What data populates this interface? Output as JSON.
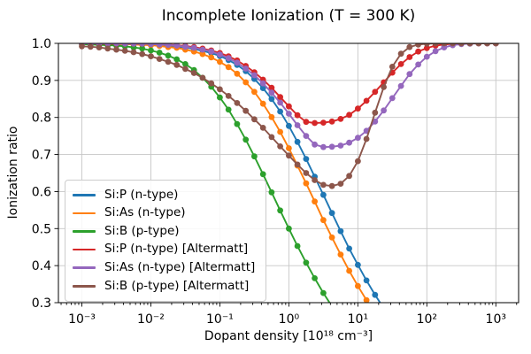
{
  "figure": {
    "title": "Incomplete Ionization (T = 300 K)",
    "background": "#ffffff"
  },
  "axes": {
    "xlabel": "Dopant density [10¹⁸ cm⁻³]",
    "ylabel": "Ionization ratio",
    "x_scale": "log",
    "x_log_range": [
      -3.34,
      3.33
    ],
    "ylim": [
      0.3,
      1.0
    ],
    "x_ticks": {
      "log_values": [
        -3,
        -2,
        -1,
        0,
        1,
        2,
        3
      ],
      "labels": [
        "10⁻³",
        "10⁻²",
        "10⁻¹",
        "10⁰",
        "10¹",
        "10²",
        "10³"
      ]
    },
    "y_ticks": {
      "values": [
        0.3,
        0.4,
        0.5,
        0.6,
        0.7,
        0.8,
        0.9,
        1.0
      ],
      "labels": [
        "0.3",
        "0.4",
        "0.5",
        "0.6",
        "0.7",
        "0.8",
        "0.9",
        "1.0"
      ]
    },
    "grid": true,
    "grid_color": "#c6c6c6",
    "spine_color": "#000000"
  },
  "legend": {
    "position": "lower left",
    "border_color": "#cccccc",
    "background": "rgba(255,255,255,0.85)"
  },
  "chart_data": {
    "type": "line",
    "title": "Incomplete Ionization (T = 300 K)",
    "xlabel": "Dopant density [10^18 cm^-3]",
    "ylabel": "Ionization ratio",
    "x_scale": "log",
    "marker": "o",
    "x_unit": "1e18 cm^-3",
    "log10_x": [
      -3,
      -2.875,
      -2.75,
      -2.625,
      -2.5,
      -2.375,
      -2.25,
      -2.125,
      -2,
      -1.875,
      -1.75,
      -1.625,
      -1.5,
      -1.375,
      -1.25,
      -1.125,
      -1,
      -0.875,
      -0.75,
      -0.625,
      -0.5,
      -0.375,
      -0.25,
      -0.125,
      0,
      0.125,
      0.25,
      0.375,
      0.5,
      0.625,
      0.75,
      0.875,
      1,
      1.125,
      1.25,
      1.375,
      1.5,
      1.625,
      1.75,
      1.875,
      2,
      2.125,
      2.25,
      2.375,
      2.5,
      2.625,
      2.75,
      2.875,
      3
    ],
    "series": [
      {
        "id": "si-p-n-type",
        "name": "Si:P (n-type)",
        "color": "#1f77b4",
        "y": [
          1.0,
          0.999,
          0.999,
          0.999,
          0.999,
          0.998,
          0.998,
          0.997,
          0.996,
          0.995,
          0.994,
          0.991,
          0.989,
          0.985,
          0.98,
          0.974,
          0.966,
          0.955,
          0.942,
          0.925,
          0.904,
          0.879,
          0.85,
          0.816,
          0.777,
          0.734,
          0.688,
          0.64,
          0.591,
          0.542,
          0.493,
          0.446,
          0.402,
          0.36,
          0.321,
          0.285,
          0.253,
          0.223,
          0.197
        ]
      },
      {
        "id": "si-as-n-type",
        "name": "Si:As (n-type)",
        "color": "#ff7f0e",
        "y": [
          0.999,
          0.999,
          0.999,
          0.999,
          0.998,
          0.998,
          0.997,
          0.996,
          0.995,
          0.993,
          0.99,
          0.988,
          0.983,
          0.978,
          0.971,
          0.962,
          0.95,
          0.936,
          0.918,
          0.895,
          0.869,
          0.837,
          0.801,
          0.761,
          0.717,
          0.67,
          0.622,
          0.573,
          0.523,
          0.476,
          0.43,
          0.386,
          0.345,
          0.307,
          0.273,
          0.241,
          0.213
        ]
      },
      {
        "id": "si-b-p-type",
        "name": "Si:B (p-type)",
        "color": "#2ca02c",
        "y": [
          0.998,
          0.997,
          0.996,
          0.995,
          0.994,
          0.992,
          0.989,
          0.986,
          0.981,
          0.975,
          0.967,
          0.957,
          0.944,
          0.928,
          0.907,
          0.883,
          0.854,
          0.821,
          0.782,
          0.74,
          0.695,
          0.647,
          0.598,
          0.549,
          0.5,
          0.453,
          0.408,
          0.366,
          0.326,
          0.29,
          0.257,
          0.227
        ]
      },
      {
        "id": "si-p-n-type-altermatt",
        "name": "Si:P (n-type) [Altermatt]",
        "color": "#d62728",
        "y": [
          1.0,
          1.0,
          0.999,
          0.999,
          0.999,
          0.999,
          0.999,
          0.999,
          0.999,
          0.998,
          0.997,
          0.995,
          0.993,
          0.99,
          0.986,
          0.981,
          0.974,
          0.965,
          0.954,
          0.939,
          0.922,
          0.902,
          0.88,
          0.855,
          0.83,
          0.806,
          0.788,
          0.785,
          0.786,
          0.789,
          0.796,
          0.807,
          0.824,
          0.845,
          0.869,
          0.895,
          0.921,
          0.944,
          0.963,
          0.978,
          0.987,
          0.994,
          0.997,
          0.999,
          0.999,
          1.0,
          1.0,
          1.0,
          1.0
        ]
      },
      {
        "id": "si-as-n-type-altermatt",
        "name": "Si:As (n-type) [Altermatt]",
        "color": "#9467bd",
        "y": [
          1.0,
          1.0,
          1.0,
          1.0,
          1.0,
          0.999,
          0.999,
          0.999,
          0.998,
          0.997,
          0.996,
          0.994,
          0.991,
          0.988,
          0.983,
          0.978,
          0.97,
          0.96,
          0.948,
          0.932,
          0.914,
          0.892,
          0.867,
          0.84,
          0.81,
          0.779,
          0.75,
          0.727,
          0.72,
          0.721,
          0.724,
          0.732,
          0.745,
          0.764,
          0.789,
          0.819,
          0.852,
          0.885,
          0.917,
          0.943,
          0.964,
          0.979,
          0.989,
          0.995,
          0.998,
          0.999,
          1.0,
          1.0,
          1.0
        ]
      },
      {
        "id": "si-b-p-type-altermatt",
        "name": "Si:B (p-type) [Altermatt]",
        "color": "#8c564b",
        "y": [
          0.992,
          0.991,
          0.989,
          0.986,
          0.983,
          0.98,
          0.976,
          0.971,
          0.965,
          0.958,
          0.95,
          0.942,
          0.931,
          0.92,
          0.907,
          0.892,
          0.876,
          0.858,
          0.839,
          0.818,
          0.795,
          0.772,
          0.747,
          0.722,
          0.697,
          0.673,
          0.65,
          0.631,
          0.618,
          0.615,
          0.621,
          0.642,
          0.682,
          0.742,
          0.813,
          0.882,
          0.937,
          0.972,
          0.99,
          0.997,
          0.999,
          1.0,
          1.0,
          1.0,
          1.0,
          1.0,
          1.0,
          1.0,
          1.0
        ]
      }
    ]
  }
}
